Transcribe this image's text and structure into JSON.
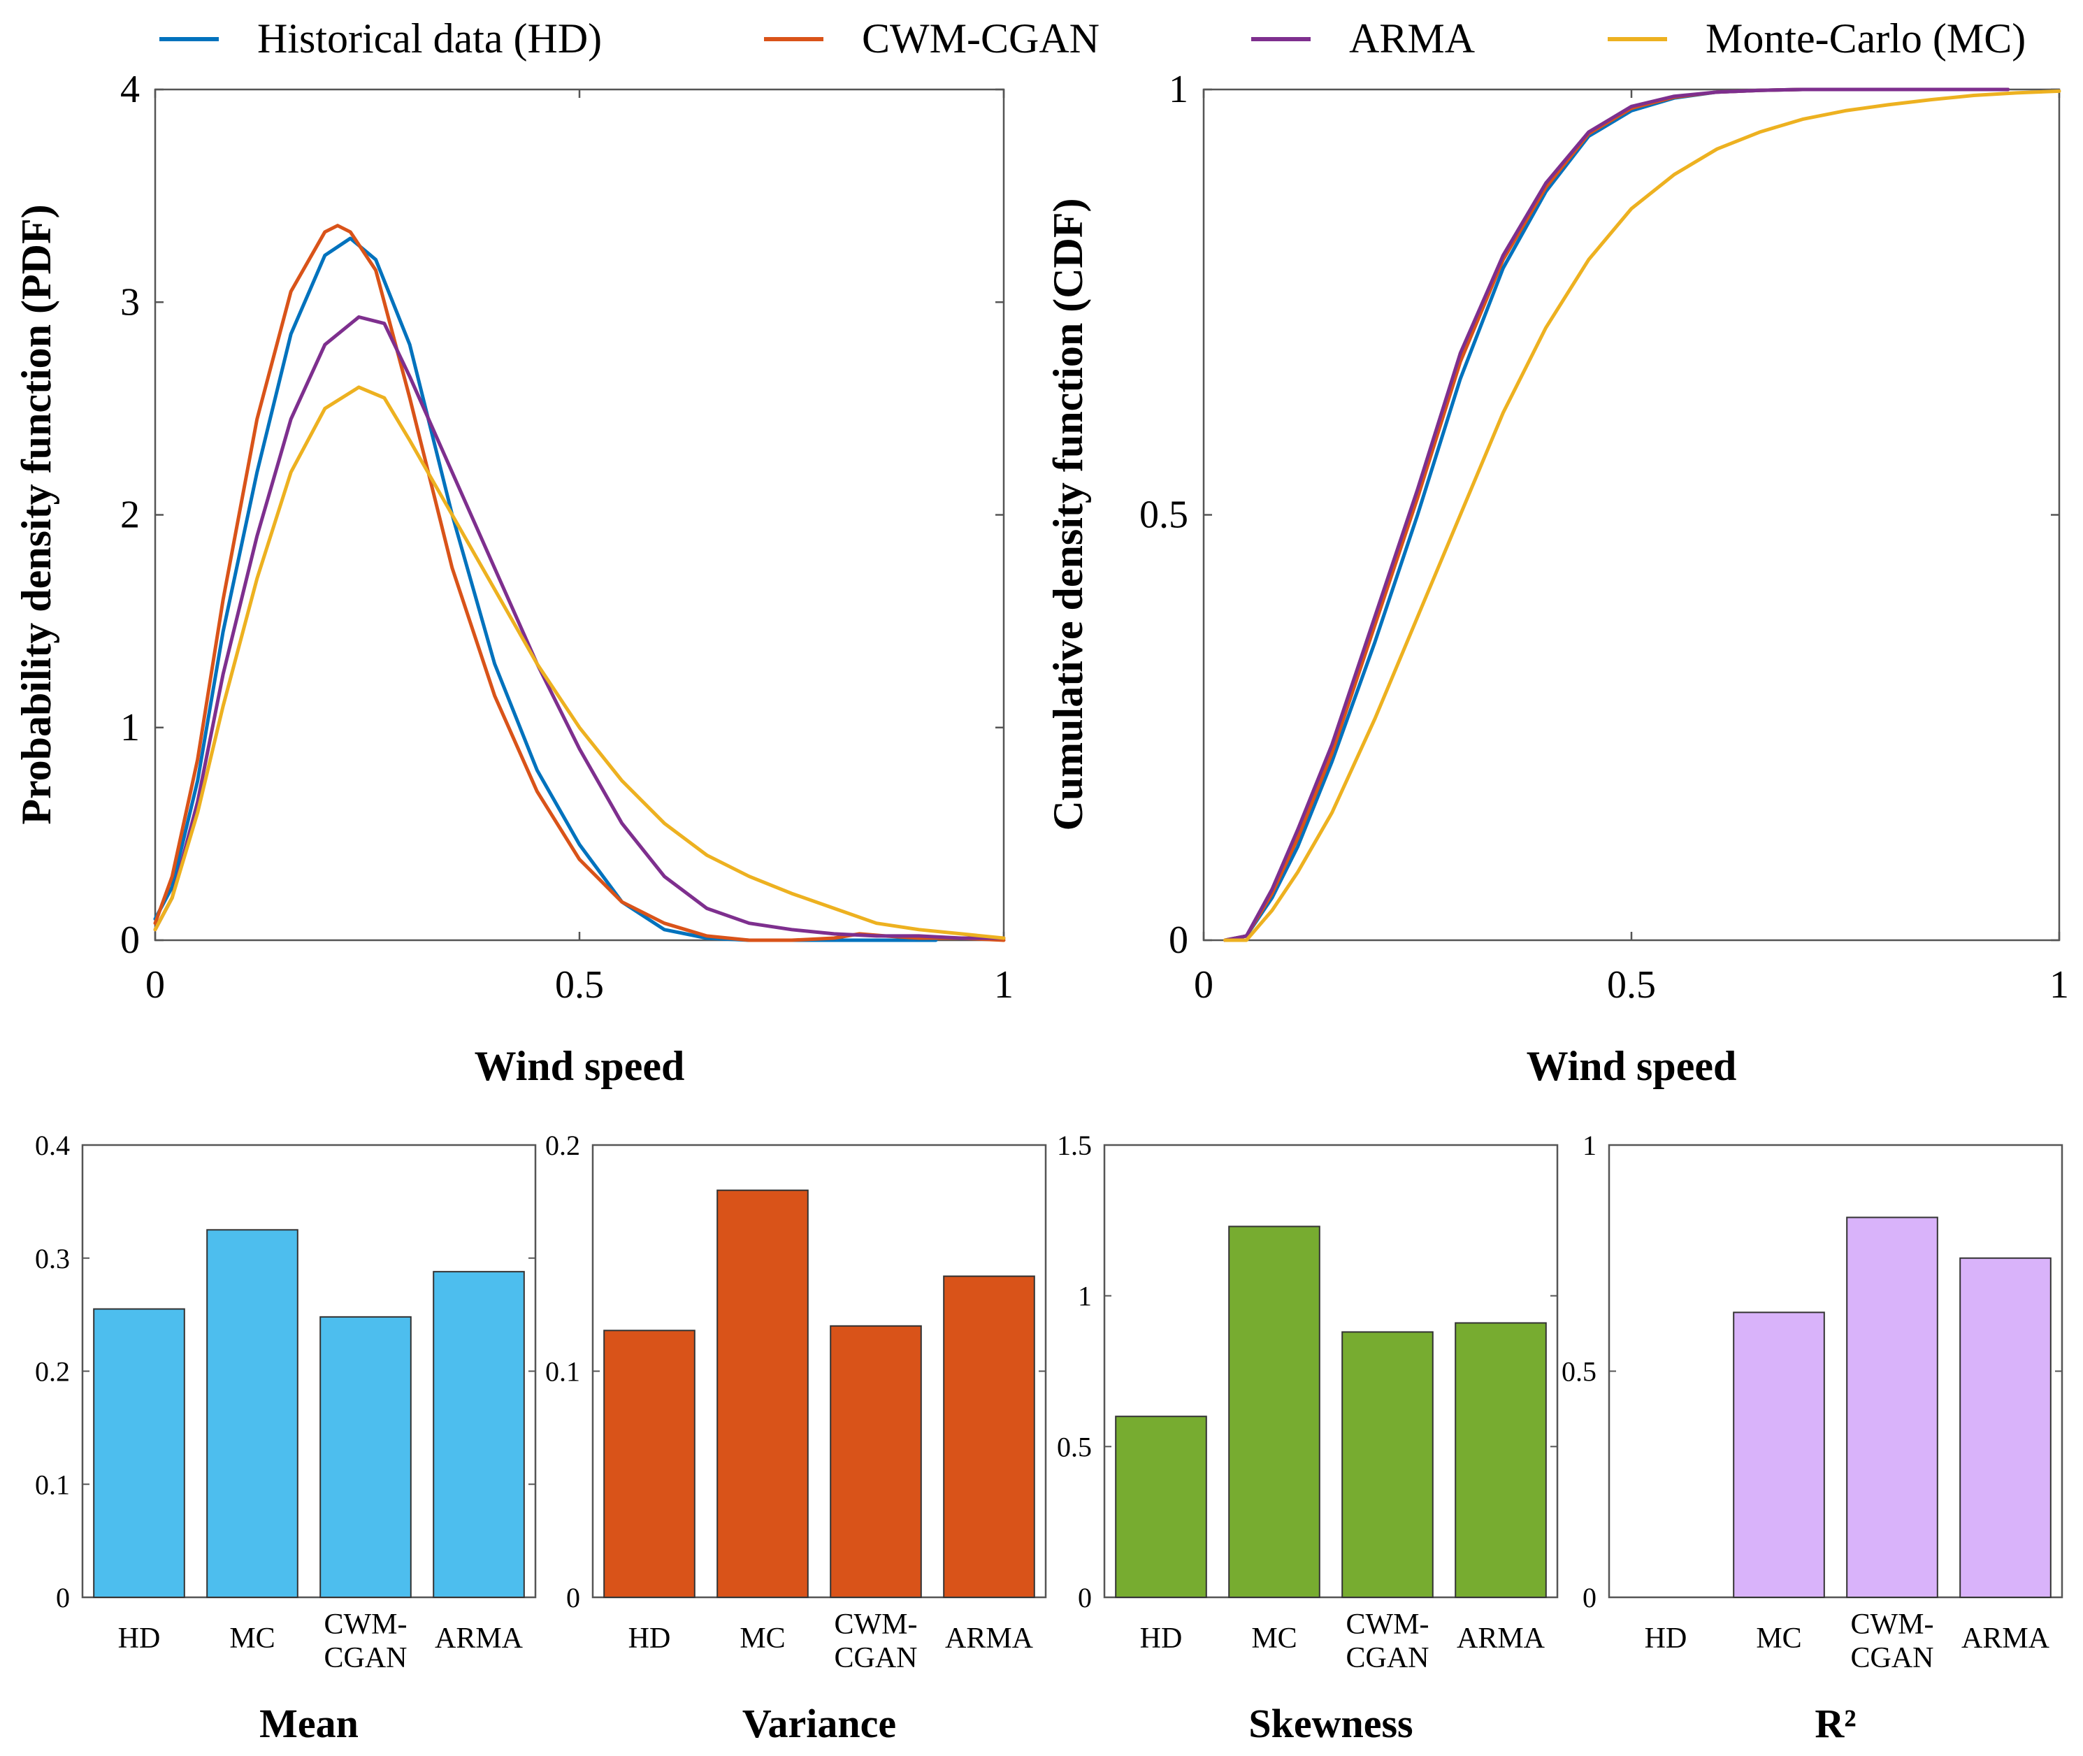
{
  "legend": [
    {
      "label": "Historical data (HD)",
      "color": "#0072BD"
    },
    {
      "label": "CWM-CGAN",
      "color": "#D95319"
    },
    {
      "label": "ARMA",
      "color": "#7E2F8E"
    },
    {
      "label": "Monte-Carlo (MC)",
      "color": "#EDB120"
    }
  ],
  "chart_data": [
    {
      "type": "line",
      "id": "pdf",
      "title": "",
      "xlabel": "Wind speed",
      "ylabel": "Probability density function (PDF)",
      "xlim": [
        0,
        1
      ],
      "ylim": [
        0,
        4
      ],
      "xticks": [
        "0",
        "0.5",
        "1"
      ],
      "xtick_values": [
        0,
        0.5,
        1
      ],
      "yticks": [
        "0",
        "1",
        "2",
        "3",
        "4"
      ],
      "ytick_values": [
        0,
        1,
        2,
        3,
        4
      ],
      "series": [
        {
          "name": "Historical data (HD)",
          "color": "#0072BD",
          "x": [
            0,
            0.02,
            0.05,
            0.08,
            0.12,
            0.16,
            0.2,
            0.23,
            0.26,
            0.3,
            0.35,
            0.4,
            0.45,
            0.5,
            0.55,
            0.6,
            0.65,
            0.7,
            0.8,
            0.9,
            0.92
          ],
          "y": [
            0.1,
            0.25,
            0.75,
            1.45,
            2.2,
            2.85,
            3.22,
            3.3,
            3.2,
            2.8,
            2.0,
            1.3,
            0.8,
            0.45,
            0.18,
            0.05,
            0.01,
            0.0,
            0.0,
            0.0,
            0.0
          ]
        },
        {
          "name": "CWM-CGAN",
          "color": "#D95319",
          "x": [
            0,
            0.02,
            0.05,
            0.08,
            0.12,
            0.16,
            0.2,
            0.215,
            0.23,
            0.26,
            0.3,
            0.35,
            0.4,
            0.45,
            0.5,
            0.55,
            0.6,
            0.65,
            0.7,
            0.75,
            0.8,
            0.83,
            0.86,
            0.9,
            0.95,
            1.0
          ],
          "y": [
            0.08,
            0.3,
            0.85,
            1.6,
            2.45,
            3.05,
            3.33,
            3.36,
            3.33,
            3.15,
            2.55,
            1.75,
            1.15,
            0.7,
            0.38,
            0.18,
            0.08,
            0.02,
            0.0,
            0.0,
            0.01,
            0.03,
            0.02,
            0.01,
            0.01,
            0.0
          ]
        },
        {
          "name": "ARMA",
          "color": "#7E2F8E",
          "x": [
            0,
            0.02,
            0.05,
            0.08,
            0.12,
            0.16,
            0.2,
            0.24,
            0.27,
            0.3,
            0.35,
            0.4,
            0.45,
            0.5,
            0.55,
            0.6,
            0.65,
            0.7,
            0.75,
            0.8,
            0.85,
            0.9,
            0.95,
            1.0
          ],
          "y": [
            0.05,
            0.2,
            0.65,
            1.25,
            1.9,
            2.45,
            2.8,
            2.93,
            2.9,
            2.65,
            2.2,
            1.75,
            1.3,
            0.9,
            0.55,
            0.3,
            0.15,
            0.08,
            0.05,
            0.03,
            0.02,
            0.02,
            0.01,
            0.01
          ]
        },
        {
          "name": "Monte-Carlo (MC)",
          "color": "#EDB120",
          "x": [
            0,
            0.02,
            0.05,
            0.08,
            0.12,
            0.16,
            0.2,
            0.24,
            0.27,
            0.3,
            0.35,
            0.4,
            0.45,
            0.5,
            0.55,
            0.6,
            0.65,
            0.7,
            0.75,
            0.8,
            0.85,
            0.9,
            0.95,
            1.0
          ],
          "y": [
            0.05,
            0.2,
            0.6,
            1.1,
            1.7,
            2.2,
            2.5,
            2.6,
            2.55,
            2.35,
            2.0,
            1.65,
            1.3,
            1.0,
            0.75,
            0.55,
            0.4,
            0.3,
            0.22,
            0.15,
            0.08,
            0.05,
            0.03,
            0.01
          ]
        }
      ]
    },
    {
      "type": "line",
      "id": "cdf",
      "title": "",
      "xlabel": "Wind speed",
      "ylabel": "Cumulative density function (CDF)",
      "xlim": [
        0,
        1
      ],
      "ylim": [
        0,
        1
      ],
      "xticks": [
        "0",
        "0.5",
        "1"
      ],
      "xtick_values": [
        0,
        0.5,
        1
      ],
      "yticks": [
        "0",
        "0.5",
        "1"
      ],
      "ytick_values": [
        0,
        0.5,
        1
      ],
      "series": [
        {
          "name": "Historical data (HD)",
          "color": "#0072BD",
          "x": [
            0.025,
            0.05,
            0.08,
            0.11,
            0.15,
            0.2,
            0.25,
            0.3,
            0.35,
            0.4,
            0.45,
            0.5,
            0.55,
            0.6,
            0.65,
            0.7,
            0.8,
            0.9,
            0.94
          ],
          "y": [
            0.0,
            0.005,
            0.05,
            0.11,
            0.21,
            0.35,
            0.5,
            0.66,
            0.79,
            0.88,
            0.945,
            0.975,
            0.99,
            0.997,
            0.999,
            1.0,
            1.0,
            1.0,
            1.0
          ]
        },
        {
          "name": "CWM-CGAN",
          "color": "#D95319",
          "x": [
            0.025,
            0.05,
            0.08,
            0.11,
            0.15,
            0.2,
            0.25,
            0.3,
            0.35,
            0.4,
            0.45,
            0.5,
            0.55,
            0.6,
            0.65,
            0.7,
            0.8,
            0.9,
            0.94
          ],
          "y": [
            0.0,
            0.005,
            0.055,
            0.12,
            0.22,
            0.37,
            0.52,
            0.68,
            0.8,
            0.885,
            0.948,
            0.978,
            0.991,
            0.997,
            0.999,
            1.0,
            1.0,
            1.0,
            1.0
          ]
        },
        {
          "name": "ARMA",
          "color": "#7E2F8E",
          "x": [
            0.025,
            0.05,
            0.08,
            0.11,
            0.15,
            0.2,
            0.25,
            0.3,
            0.35,
            0.4,
            0.45,
            0.5,
            0.55,
            0.6,
            0.65,
            0.7,
            0.8,
            0.9,
            0.94
          ],
          "y": [
            0.0,
            0.005,
            0.06,
            0.13,
            0.23,
            0.38,
            0.53,
            0.69,
            0.805,
            0.89,
            0.95,
            0.98,
            0.992,
            0.997,
            0.999,
            1.0,
            1.0,
            1.0,
            1.0
          ]
        },
        {
          "name": "Monte-Carlo (MC)",
          "color": "#EDB120",
          "x": [
            0.025,
            0.05,
            0.08,
            0.11,
            0.15,
            0.2,
            0.25,
            0.3,
            0.35,
            0.4,
            0.45,
            0.5,
            0.55,
            0.6,
            0.65,
            0.7,
            0.75,
            0.8,
            0.85,
            0.9,
            0.95,
            1.0
          ],
          "y": [
            0.0,
            0.0,
            0.035,
            0.08,
            0.15,
            0.26,
            0.38,
            0.5,
            0.62,
            0.72,
            0.8,
            0.86,
            0.9,
            0.93,
            0.95,
            0.965,
            0.975,
            0.982,
            0.988,
            0.993,
            0.996,
            0.998
          ]
        }
      ]
    },
    {
      "type": "bar",
      "id": "mean",
      "title": "Mean",
      "categories": [
        "HD",
        "MC",
        "CWM-\nCGAN",
        "ARMA"
      ],
      "values": [
        0.255,
        0.325,
        0.248,
        0.288
      ],
      "ylim": [
        0,
        0.4
      ],
      "yticks": [
        "0",
        "0.1",
        "0.2",
        "0.3",
        "0.4"
      ],
      "ytick_values": [
        0,
        0.1,
        0.2,
        0.3,
        0.4
      ],
      "color": "#4DBEEE"
    },
    {
      "type": "bar",
      "id": "variance",
      "title": "Variance",
      "categories": [
        "HD",
        "MC",
        "CWM-\nCGAN",
        "ARMA"
      ],
      "values": [
        0.118,
        0.18,
        0.12,
        0.142
      ],
      "ylim": [
        0,
        0.2
      ],
      "yticks": [
        "0",
        "0.1",
        "0.2"
      ],
      "ytick_values": [
        0,
        0.1,
        0.2
      ],
      "color": "#D95319"
    },
    {
      "type": "bar",
      "id": "skewness",
      "title": "Skewness",
      "categories": [
        "HD",
        "MC",
        "CWM-\nCGAN",
        "ARMA"
      ],
      "values": [
        0.6,
        1.23,
        0.88,
        0.91
      ],
      "ylim": [
        0,
        1.5
      ],
      "yticks": [
        "0",
        "0.5",
        "1",
        "1.5"
      ],
      "ytick_values": [
        0,
        0.5,
        1,
        1.5
      ],
      "color": "#77AC30"
    },
    {
      "type": "bar",
      "id": "r2",
      "title": "R²",
      "categories": [
        "HD",
        "MC",
        "CWM-\nCGAN",
        "ARMA"
      ],
      "values": [
        0,
        0.63,
        0.84,
        0.75
      ],
      "ylim": [
        0,
        1
      ],
      "yticks": [
        "0",
        "0.5",
        "1"
      ],
      "ytick_values": [
        0,
        0.5,
        1
      ],
      "color": "#D9B3FA"
    }
  ]
}
